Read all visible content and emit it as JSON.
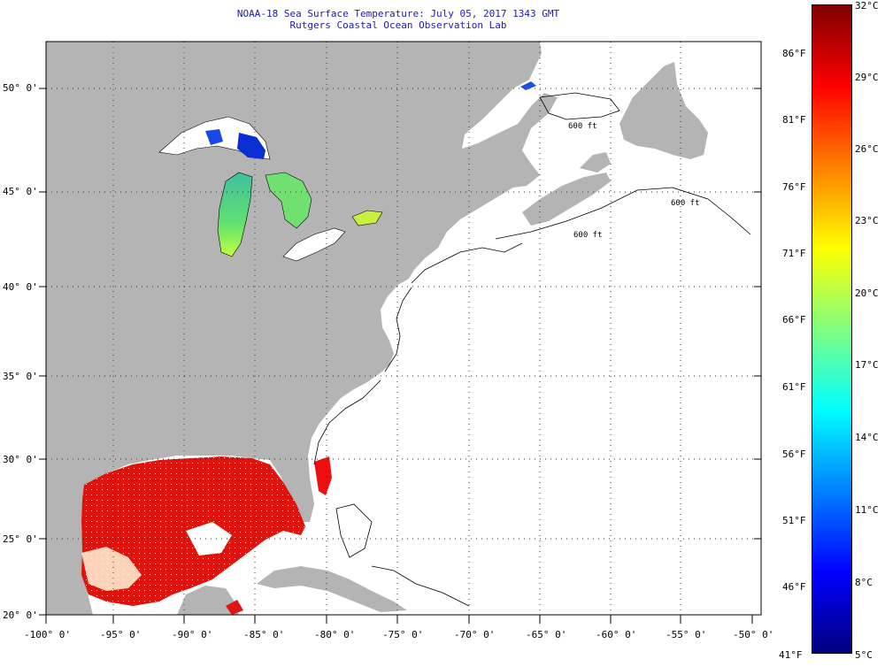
{
  "title": {
    "line1": "NOAA-18 Sea Surface Temperature:  July 05, 2017 1343 GMT",
    "line2": "Rutgers Coastal Ocean Observation Lab"
  },
  "map": {
    "lat_labels": [
      {
        "text": "50° 0'",
        "lat": 50
      },
      {
        "text": "45° 0'",
        "lat": 45
      },
      {
        "text": "40° 0'",
        "lat": 40
      },
      {
        "text": "35° 0'",
        "lat": 35
      },
      {
        "text": "30° 0'",
        "lat": 30
      },
      {
        "text": "25° 0'",
        "lat": 25
      },
      {
        "text": "20° 0'",
        "lat": 20
      }
    ],
    "lon_labels": [
      {
        "text": "-100° 0'",
        "lon": -100
      },
      {
        "text": "-95° 0'",
        "lon": -95
      },
      {
        "text": "-90° 0'",
        "lon": -90
      },
      {
        "text": "-85° 0'",
        "lon": -85
      },
      {
        "text": "-80° 0'",
        "lon": -80
      },
      {
        "text": "-75° 0'",
        "lon": -75
      },
      {
        "text": "-70° 0'",
        "lon": -70
      },
      {
        "text": "-65° 0'",
        "lon": -65
      },
      {
        "text": "-60° 0'",
        "lon": -60
      },
      {
        "text": "-55° 0'",
        "lon": -55
      },
      {
        "text": "-50° 0'",
        "lon": -50
      }
    ],
    "isobath_labels": [
      "600 ft",
      "600 ft",
      "600 ft"
    ],
    "colors": {
      "land": "#b4b4b4",
      "ocean": "#ffffff",
      "grid": "#333333"
    }
  },
  "colorbar": {
    "f_labels": [
      "86°F",
      "81°F",
      "76°F",
      "71°F",
      "66°F",
      "61°F",
      "56°F",
      "51°F",
      "46°F"
    ],
    "f_bottom": "41°F",
    "c_labels": [
      "32°C",
      "29°C",
      "26°C",
      "23°C",
      "20°C",
      "17°C",
      "14°C",
      "11°C",
      "8°C",
      "5°C"
    ],
    "c_values": [
      32,
      29,
      26,
      23,
      20,
      17,
      14,
      11,
      8,
      5
    ],
    "f_values": [
      86,
      81,
      76,
      71,
      66,
      61,
      56,
      51,
      46,
      41
    ],
    "range_c": [
      5,
      32
    ],
    "colors": [
      "#7f0000",
      "#ff0000",
      "#ff8000",
      "#ffff00",
      "#80ff80",
      "#00ffff",
      "#0080ff",
      "#0000ff",
      "#00007f"
    ]
  }
}
